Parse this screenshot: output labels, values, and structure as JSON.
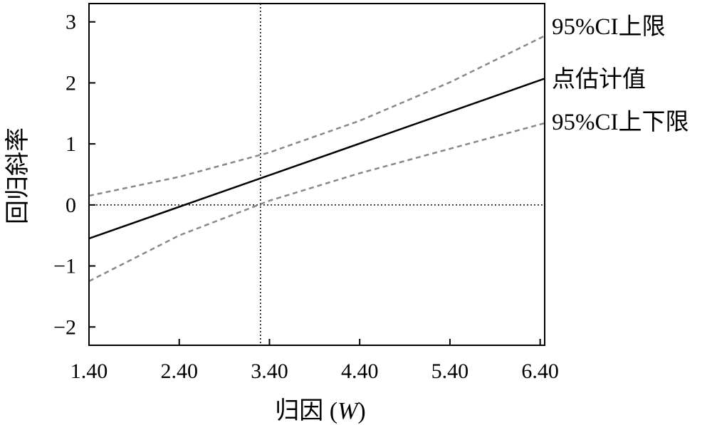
{
  "chart_data": {
    "type": "line",
    "xlabel": "归因 (",
    "xlabel_var": "W",
    "xlabel_close": ")",
    "ylabel": "回归斜率",
    "xlim": [
      1.4,
      6.45
    ],
    "ylim": [
      -2.3,
      3.3
    ],
    "x_ticks": [
      1.4,
      2.4,
      3.4,
      4.4,
      5.4,
      6.4
    ],
    "x_tick_labels": [
      "1.40",
      "2.40",
      "3.40",
      "4.40",
      "5.40",
      "6.40"
    ],
    "y_ticks": [
      -2,
      -1,
      0,
      1,
      2,
      3
    ],
    "y_tick_labels": [
      "−2",
      "−1",
      "0",
      "1",
      "2",
      "3"
    ],
    "reference_lines": {
      "x": 3.3,
      "y": 0
    },
    "series": [
      {
        "name": "95%CI上限",
        "style": "dashed",
        "color": "#888888",
        "x": [
          1.4,
          2.4,
          3.4,
          4.4,
          5.4,
          6.45
        ],
        "y": [
          0.15,
          0.46,
          0.86,
          1.38,
          2.01,
          2.77
        ]
      },
      {
        "name": "点估计值",
        "style": "solid",
        "color": "#000000",
        "x": [
          1.4,
          6.45
        ],
        "y": [
          -0.55,
          2.07
        ]
      },
      {
        "name": "95%CI上下限",
        "style": "dashed",
        "color": "#888888",
        "x": [
          1.4,
          2.4,
          3.4,
          4.4,
          5.4,
          6.45
        ],
        "y": [
          -1.25,
          -0.5,
          0.07,
          0.52,
          0.92,
          1.34
        ]
      }
    ],
    "legend_placement": "right, beside line ends"
  }
}
